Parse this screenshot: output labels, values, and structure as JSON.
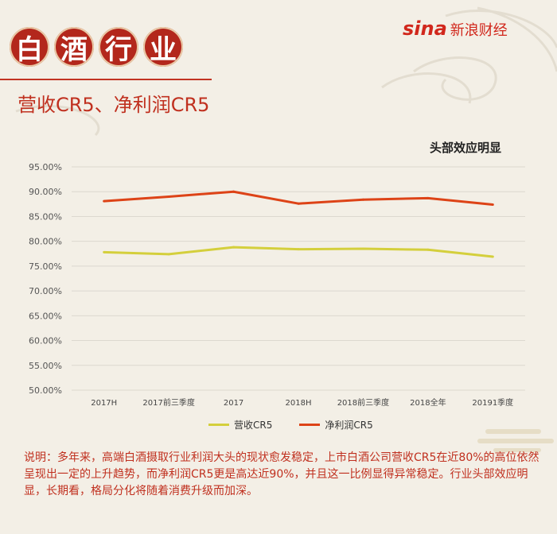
{
  "header": {
    "title_chars": [
      "白",
      "酒",
      "行",
      "业"
    ],
    "subtitle": "营收CR5、净利润CR5",
    "logo_sina": "sina",
    "logo_text": "新浪财经"
  },
  "note": "说明：多年来，高端白酒摄取行业利润大头的现状愈发稳定，上市白酒公司营收CR5在近80%的高位依然呈现出一定的上升趋势，而净利润CR5更是高达近90%，并且这一比例显得异常稳定。行业头部效应明显，长期看，格局分化将随着消费升级而加深。",
  "colors": {
    "accent_red": "#c0301f",
    "series_revenue": "#d4cf3c",
    "series_profit": "#dd4317",
    "background": "#f3efe6"
  },
  "chart_data": {
    "type": "line",
    "title": "头部效应明显",
    "categories": [
      "2017H",
      "2017前三季度",
      "2017",
      "2018H",
      "2018前三季度",
      "2018全年",
      "20191季度"
    ],
    "series": [
      {
        "name": "营收CR5",
        "values": [
          77.8,
          77.4,
          78.8,
          78.4,
          78.5,
          78.3,
          76.9
        ]
      },
      {
        "name": "净利润CR5",
        "values": [
          88.1,
          89.0,
          90.0,
          87.6,
          88.4,
          88.7,
          87.4
        ]
      }
    ],
    "y_ticks": [
      "95.00%",
      "90.00%",
      "85.00%",
      "80.00%",
      "75.00%",
      "70.00%",
      "65.00%",
      "60.00%",
      "55.00%",
      "50.00%"
    ],
    "ylim": [
      50,
      95
    ],
    "grid": true,
    "legend": "bottom"
  }
}
